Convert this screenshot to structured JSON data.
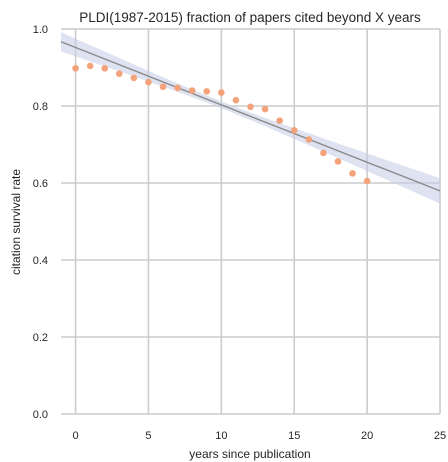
{
  "chart_data": {
    "type": "scatter",
    "title": "PLDI(1987-2015) fraction of papers cited beyond X years",
    "xlabel": "years since publication",
    "ylabel": "citation survival rate",
    "xlim": [
      -1,
      25
    ],
    "ylim": [
      0.0,
      1.0
    ],
    "x_ticks": [
      0,
      5,
      10,
      15,
      20,
      25
    ],
    "y_ticks": [
      0.0,
      0.2,
      0.4,
      0.6,
      0.8,
      1.0
    ],
    "x_tick_labels": [
      "0",
      "5",
      "10",
      "15",
      "20",
      "25"
    ],
    "y_tick_labels": [
      "0.0",
      "0.2",
      "0.4",
      "0.6",
      "0.8",
      "1.0"
    ],
    "grid": true,
    "series": [
      {
        "x": [
          0,
          1,
          2,
          3,
          4,
          5,
          6,
          7,
          8,
          9,
          10,
          11,
          12,
          13,
          14,
          15,
          16,
          17,
          18,
          19,
          20
        ],
        "y": [
          0.898,
          0.904,
          0.898,
          0.884,
          0.873,
          0.862,
          0.85,
          0.847,
          0.84,
          0.838,
          0.835,
          0.815,
          0.798,
          0.792,
          0.762,
          0.737,
          0.713,
          0.678,
          0.656,
          0.625,
          0.605
        ]
      }
    ],
    "regression": {
      "intercept": 0.952,
      "slope": -0.0149,
      "ci_halfwidth_at_ends": 0.033,
      "ci_halfwidth_at_center": 0.009
    },
    "colors": {
      "points": "#f4a27a",
      "fit_line": "#8a8a8a",
      "ci_band": "#c5cce6",
      "grid": "#cccccc",
      "background": "#ffffff"
    }
  }
}
